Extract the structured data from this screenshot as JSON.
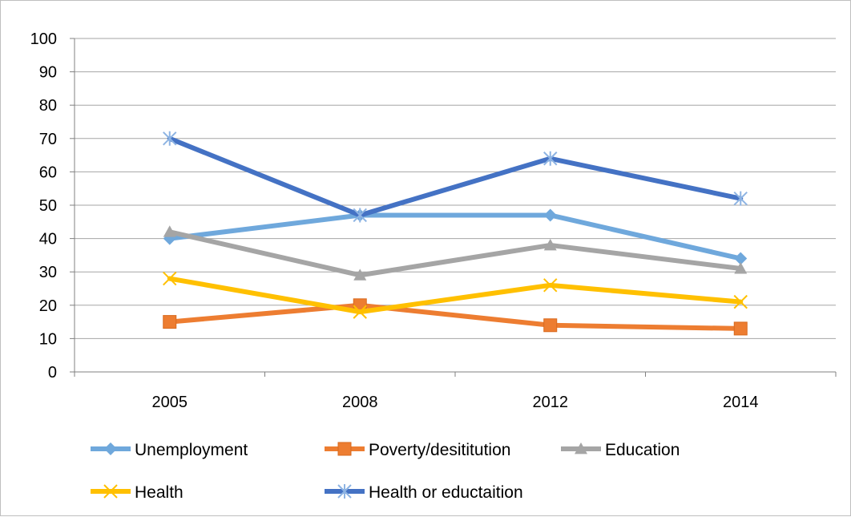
{
  "chart_data": {
    "type": "line",
    "categories": [
      "2005",
      "2008",
      "2012",
      "2014"
    ],
    "ylim": [
      0,
      100
    ],
    "yticks": [
      0,
      10,
      20,
      30,
      40,
      50,
      60,
      70,
      80,
      90,
      100
    ],
    "grid": true,
    "legend_position": "bottom",
    "series": [
      {
        "name": "Unemployment",
        "values": [
          40,
          47,
          47,
          34
        ],
        "color": "#6fa8dc",
        "marker": "diamond"
      },
      {
        "name": "Poverty/desititution",
        "values": [
          15,
          20,
          14,
          13
        ],
        "color": "#ed7d31",
        "marker": "square"
      },
      {
        "name": "Education",
        "values": [
          42,
          29,
          38,
          31
        ],
        "color": "#a5a5a5",
        "marker": "triangle"
      },
      {
        "name": "Health",
        "values": [
          28,
          18,
          26,
          21
        ],
        "color": "#ffc000",
        "marker": "x"
      },
      {
        "name": "Health or eductaition",
        "values": [
          70,
          47,
          64,
          52
        ],
        "color": "#4472c4",
        "marker": "star"
      }
    ]
  }
}
